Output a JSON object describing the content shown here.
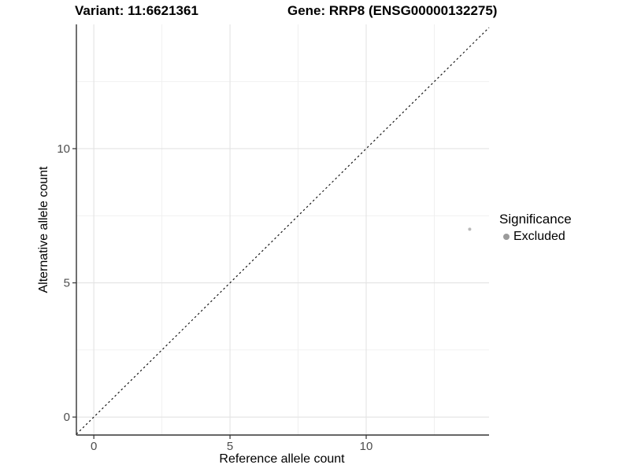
{
  "figure": {
    "variant_title": "Variant: 11:6621361",
    "gene_title": "Gene: RRP8 (ENSG00000132275)"
  },
  "axes": {
    "x_label": "Reference allele count",
    "y_label": "Alternative allele count"
  },
  "legend": {
    "title": "Significance",
    "items": [
      {
        "label": "Excluded",
        "color": "#9b9b9b"
      }
    ]
  },
  "chart_data": {
    "type": "scatter",
    "title": "Variant: 11:6621361 / Gene: RRP8 (ENSG00000132275)",
    "xlabel": "Reference allele count",
    "ylabel": "Alternative allele count",
    "xlim": [
      -0.64,
      14.51
    ],
    "ylim": [
      -0.67,
      14.63
    ],
    "x_ticks": [
      0,
      5,
      10
    ],
    "y_ticks": [
      0,
      5,
      10
    ],
    "x_minor_ticks": [
      2.5,
      7.5,
      12.5
    ],
    "y_minor_ticks": [
      2.5,
      7.5,
      12.5
    ],
    "grid": {
      "major_color": "#e3e3e3",
      "minor_color": "#efefef",
      "visible": true
    },
    "identity_line": {
      "slope": 1,
      "intercept": 0,
      "style": "dashed",
      "color": "#1a1a1a"
    },
    "series": [
      {
        "name": "Excluded",
        "color": "#b9b9b9",
        "points": [
          {
            "x": 13.8,
            "y": 7
          }
        ]
      }
    ],
    "axis_line_color": "#333333",
    "tick_color": "#333333",
    "tick_label_color": "#4d4d4d",
    "legend_position": "right"
  }
}
